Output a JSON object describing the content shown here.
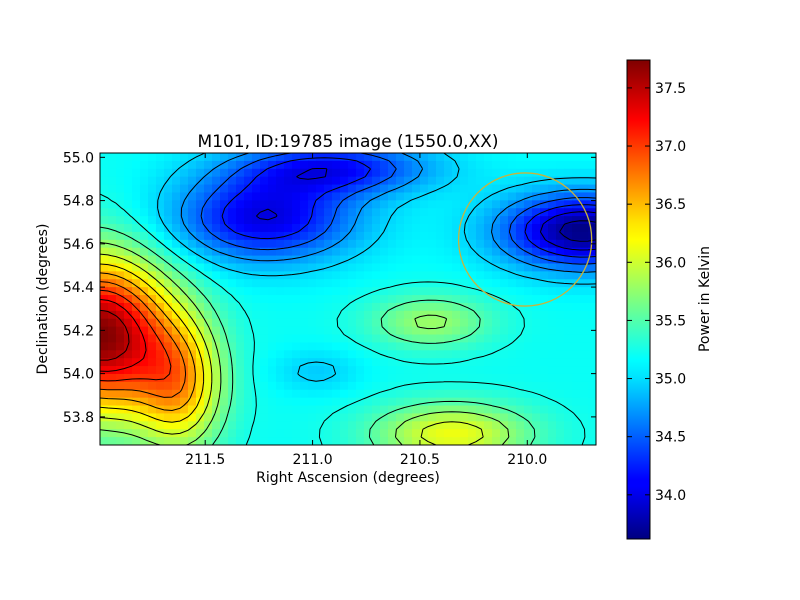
{
  "chart_data": {
    "type": "heatmap",
    "title": "M101, ID:19785 image (1550.0,XX)",
    "xlabel": "Right Ascension (degrees)",
    "ylabel": "Declination (degrees)",
    "xlim": [
      211.99,
      209.68
    ],
    "ylim": [
      53.67,
      55.02
    ],
    "x_ticks": [
      211.5,
      211.0,
      210.5,
      210.0
    ],
    "x_tick_labels": [
      "211.5",
      "211.0",
      "210.5",
      "210.0"
    ],
    "y_ticks": [
      53.8,
      54.0,
      54.2,
      54.4,
      54.6,
      54.8,
      55.0
    ],
    "y_tick_labels": [
      "53.8",
      "54.0",
      "54.2",
      "54.4",
      "54.6",
      "54.8",
      "55.0"
    ],
    "colorbar": {
      "label": "Power in Kelvin",
      "range": [
        33.62,
        37.74
      ],
      "ticks": [
        34.0,
        34.5,
        35.0,
        35.5,
        36.0,
        36.5,
        37.0,
        37.5
      ],
      "tick_labels": [
        "34.0",
        "34.5",
        "35.0",
        "35.5",
        "36.0",
        "36.5",
        "37.0",
        "37.5"
      ],
      "colormap": "jet"
    },
    "features": [
      {
        "ra": 211.99,
        "dec": 54.18,
        "value": 37.74,
        "width_ra": 0.32,
        "width_dec": 0.35
      },
      {
        "ra": 211.62,
        "dec": 53.95,
        "value": 36.4,
        "width_ra": 0.2,
        "width_dec": 0.3
      },
      {
        "ra": 211.22,
        "dec": 54.72,
        "value": 34.0,
        "width_ra": 0.42,
        "width_dec": 0.2
      },
      {
        "ra": 210.9,
        "dec": 54.95,
        "value": 34.2,
        "width_ra": 0.45,
        "width_dec": 0.12
      },
      {
        "ra": 209.74,
        "dec": 54.66,
        "value": 33.62,
        "width_ra": 0.38,
        "width_dec": 0.17
      },
      {
        "ra": 210.45,
        "dec": 54.24,
        "value": 35.8,
        "width_ra": 0.28,
        "width_dec": 0.12
      },
      {
        "ra": 210.35,
        "dec": 53.72,
        "value": 36.15,
        "width_ra": 0.36,
        "width_dec": 0.14
      },
      {
        "ra": 210.98,
        "dec": 54.01,
        "value": 34.95,
        "width_ra": 0.2,
        "width_dec": 0.1
      }
    ],
    "background_value": 35.2,
    "annotation_circle": {
      "ra": 210.01,
      "dec": 54.62,
      "radius_deg": 0.31,
      "color": "#c8b43c"
    }
  }
}
